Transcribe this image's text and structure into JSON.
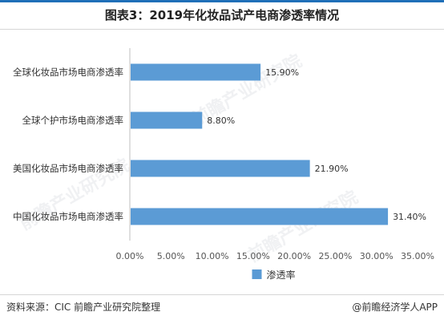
{
  "title": "图表3：2019年化妆品试产电商渗透率情况",
  "source": "资料来源：CIC 前瞻产业研究院整理",
  "brand": "@前瞻经济学人APP",
  "watermark": "前瞻产业研究院",
  "colors": {
    "bar": "#5b9bd5",
    "accent": "#1f6fb8"
  },
  "chart_data": {
    "type": "bar",
    "orientation": "horizontal",
    "categories": [
      "全球化妆品市场电商渗透率",
      "全球个护市场电商渗透率",
      "美国化妆品市场电商渗透率",
      "中国化妆品市场电商渗透率"
    ],
    "series": [
      {
        "name": "渗透率",
        "values": [
          15.9,
          8.8,
          21.9,
          31.4
        ]
      }
    ],
    "value_labels": [
      "15.90%",
      "8.80%",
      "21.90%",
      "31.40%"
    ],
    "xlim": [
      0,
      35
    ],
    "xticks": [
      "0.00%",
      "5.00%",
      "10.00%",
      "15.00%",
      "20.00%",
      "25.00%",
      "30.00%",
      "35.00%"
    ],
    "grid": false,
    "legend": "bottom"
  }
}
